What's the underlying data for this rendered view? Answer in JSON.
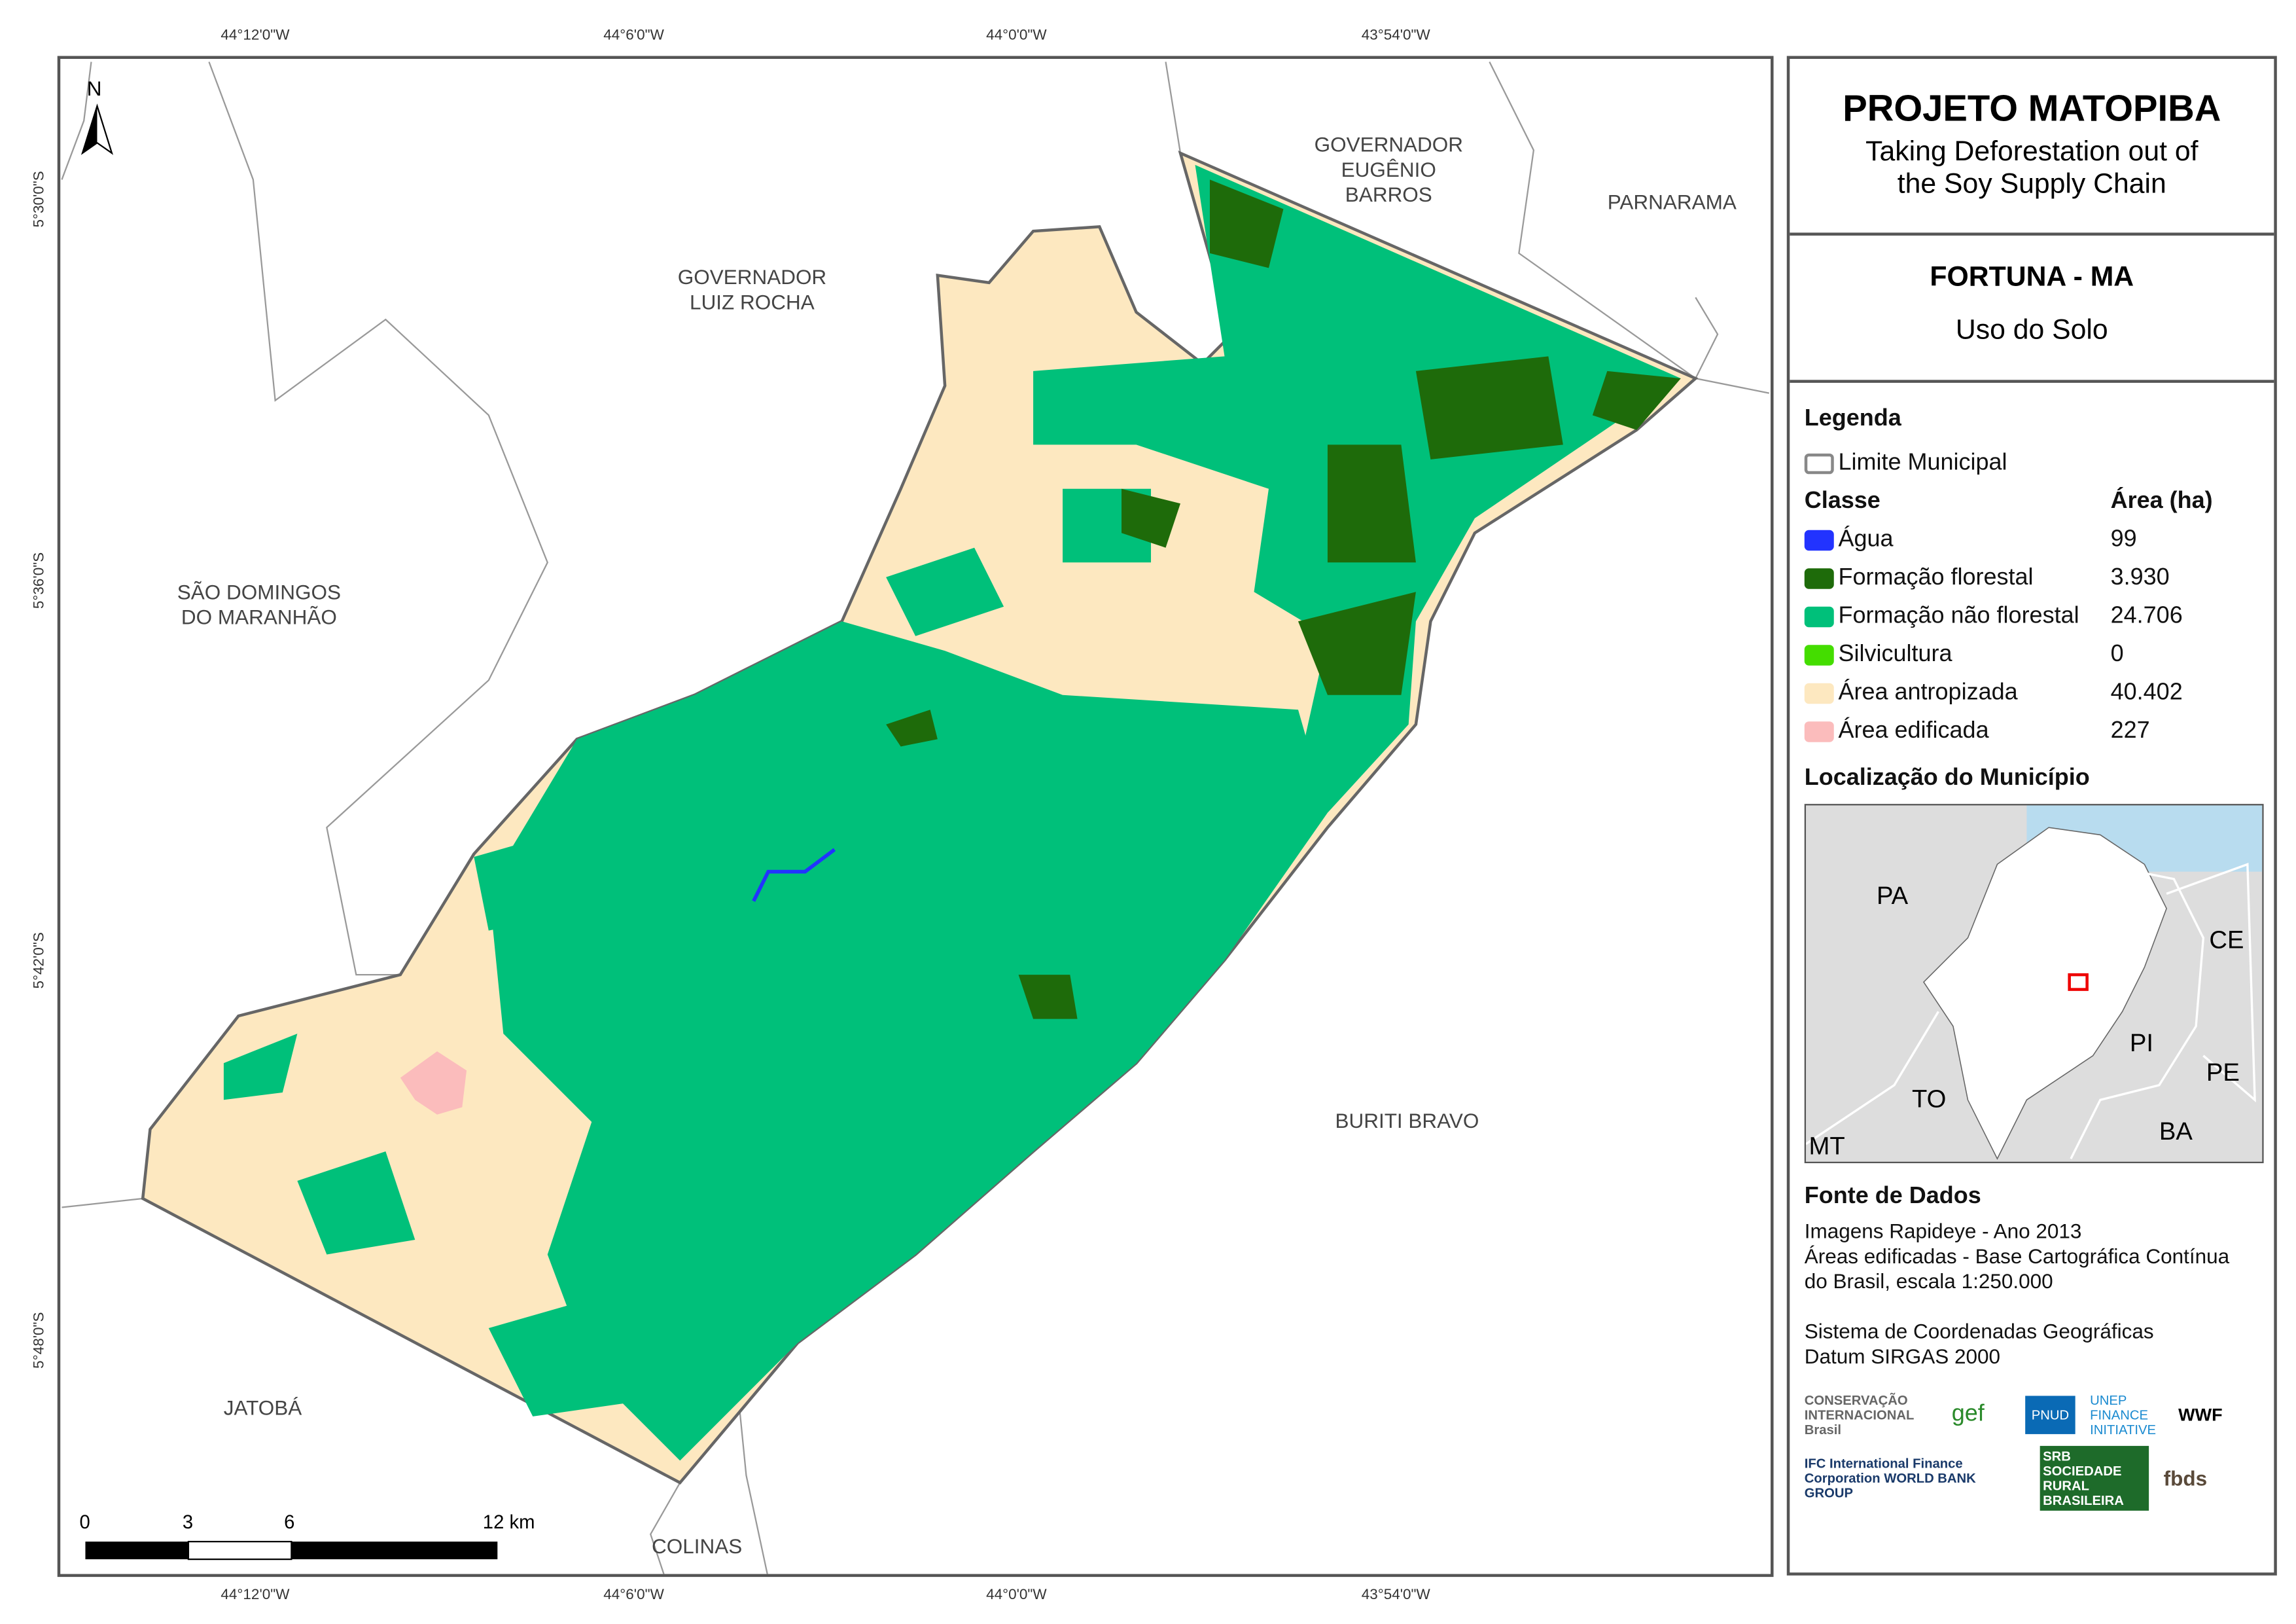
{
  "map": {
    "north_label": "N",
    "top_coords": [
      "44°12'0\"W",
      "44°6'0\"W",
      "44°0'0\"W",
      "43°54'0\"W"
    ],
    "bottom_coords": [
      "44°12'0\"W",
      "44°6'0\"W",
      "44°0'0\"W",
      "43°54'0\"W"
    ],
    "left_coords": [
      "5°30'0\"S",
      "5°36'0\"S",
      "5°42'0\"S",
      "5°48'0\"S"
    ],
    "neighbors": [
      "GOVERNADOR EUGÊNIO BARROS",
      "PARNARAMA",
      "GOVERNADOR LUIZ ROCHA",
      "SÃO DOMINGOS DO MARANHÃO",
      "BURITI BRAVO",
      "JATOBÁ",
      "COLINAS"
    ],
    "neighbor_lines": {
      "gov_eugenio": [
        "GOVERNADOR",
        "EUGÊNIO",
        "BARROS"
      ],
      "gov_luiz": [
        "GOVERNADOR",
        "LUIZ ROCHA"
      ],
      "sao_domingos": [
        "SÃO DOMINGOS",
        "DO MARANHÃO"
      ]
    },
    "scale_labels": [
      "0",
      "3",
      "6",
      "12 km"
    ]
  },
  "panel": {
    "title": "PROJETO MATOPIBA",
    "subtitle_1": "Taking Deforestation out of",
    "subtitle_2": "the Soy Supply Chain",
    "municipality": "FORTUNA - MA",
    "theme": "Uso do Solo",
    "legend_title": "Legenda",
    "boundary_label": "Limite Municipal",
    "class_header": "Classe",
    "area_header": "Área (ha)",
    "classes": [
      {
        "name": "Água",
        "area": "99",
        "color": "#2233ff"
      },
      {
        "name": "Formação florestal",
        "area": "3.930",
        "color": "#1e6b0a"
      },
      {
        "name": "Formação não florestal",
        "area": "24.706",
        "color": "#00c07a"
      },
      {
        "name": "Silvicultura",
        "area": "0",
        "color": "#44dd00"
      },
      {
        "name": "Área antropizada",
        "area": "40.402",
        "color": "#fde8c0"
      },
      {
        "name": "Área edificada",
        "area": "227",
        "color": "#fbbcbc"
      }
    ],
    "location_title": "Localização do Município",
    "inset_labels": [
      "PA",
      "CE",
      "PI",
      "PE",
      "TO",
      "BA",
      "MT"
    ],
    "sources_title": "Fonte de Dados",
    "sources": [
      "Imagens Rapideye - Ano 2013",
      "Áreas edificadas - Base Cartográfica Contínua",
      "do Brasil, escala 1:250.000"
    ],
    "crs": [
      "Sistema de Coordenadas Geográficas",
      "Datum SIRGAS 2000"
    ],
    "logos": [
      "CONSERVAÇÃO INTERNACIONAL Brasil",
      "gef",
      "PNUD",
      "UNEP FINANCE INITIATIVE",
      "WWF",
      "IFC International Finance Corporation WORLD BANK GROUP",
      "SRB SOCIEDADE RURAL BRASILEIRA",
      "fbds"
    ]
  },
  "colors": {
    "antropizada": "#fde8c0",
    "nao_florestal": "#00c07a",
    "florestal": "#1e6b0a",
    "agua": "#2233ff",
    "edificada": "#fbbcbc",
    "ocean": "#b8dcef"
  }
}
